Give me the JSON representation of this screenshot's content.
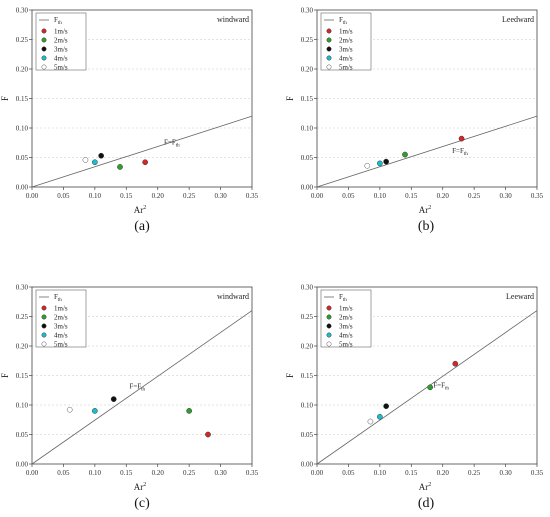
{
  "chart_data": [
    {
      "type": "scatter",
      "panel_label": "(a)",
      "corner_label": "windward",
      "xlabel": "Ar",
      "xlabel_sup": "2",
      "ylabel": "F",
      "xlim": [
        0,
        0.35
      ],
      "ylim": [
        0,
        0.3
      ],
      "xticks": [
        "0.00",
        "0.05",
        "0.10",
        "0.15",
        "0.20",
        "0.25",
        "0.30",
        "0.35"
      ],
      "yticks": [
        "0.00",
        "0.05",
        "0.10",
        "0.15",
        "0.20",
        "0.25",
        "0.30"
      ],
      "grid": true,
      "legend_position": "top-left",
      "line": {
        "name": "F",
        "name_sub": "th",
        "slope": 0.343,
        "annotation": "F=F",
        "annotation_sub": "th",
        "annotation_at": [
          0.21,
          0.072
        ]
      },
      "series": [
        {
          "name": "1m/s",
          "color": "#d62728",
          "hollow": false,
          "x": 0.18,
          "y": 0.042
        },
        {
          "name": "2m/s",
          "color": "#2ca02c",
          "hollow": false,
          "x": 0.14,
          "y": 0.034
        },
        {
          "name": "3m/s",
          "color": "#111111",
          "hollow": false,
          "x": 0.11,
          "y": 0.053
        },
        {
          "name": "4m/s",
          "color": "#17becf",
          "hollow": false,
          "x": 0.1,
          "y": 0.042
        },
        {
          "name": "5m/s",
          "color": "#ffffff",
          "hollow": true,
          "x": 0.085,
          "y": 0.046
        }
      ]
    },
    {
      "type": "scatter",
      "panel_label": "(b)",
      "corner_label": "Leedward",
      "xlabel": "Ar",
      "xlabel_sup": "2",
      "ylabel": "F",
      "xlim": [
        0,
        0.35
      ],
      "ylim": [
        0,
        0.3
      ],
      "xticks": [
        "0.00",
        "0.05",
        "0.10",
        "0.15",
        "0.20",
        "0.25",
        "0.30",
        "0.35"
      ],
      "yticks": [
        "0.00",
        "0.05",
        "0.10",
        "0.15",
        "0.20",
        "0.25",
        "0.30"
      ],
      "grid": true,
      "legend_position": "top-left",
      "line": {
        "name": "F",
        "name_sub": "th",
        "slope": 0.343,
        "annotation": "F=F",
        "annotation_sub": "th",
        "annotation_at": [
          0.215,
          0.058
        ]
      },
      "series": [
        {
          "name": "1m/s",
          "color": "#d62728",
          "hollow": false,
          "x": 0.23,
          "y": 0.082
        },
        {
          "name": "2m/s",
          "color": "#2ca02c",
          "hollow": false,
          "x": 0.14,
          "y": 0.055
        },
        {
          "name": "3m/s",
          "color": "#111111",
          "hollow": false,
          "x": 0.11,
          "y": 0.043
        },
        {
          "name": "4m/s",
          "color": "#17becf",
          "hollow": false,
          "x": 0.1,
          "y": 0.04
        },
        {
          "name": "5m/s",
          "color": "#ffffff",
          "hollow": true,
          "x": 0.08,
          "y": 0.036
        }
      ]
    },
    {
      "type": "scatter",
      "panel_label": "(c)",
      "corner_label": "windward",
      "xlabel": "Ar",
      "xlabel_sup": "2",
      "ylabel": "F",
      "xlim": [
        0,
        0.35
      ],
      "ylim": [
        0,
        0.3
      ],
      "xticks": [
        "0.00",
        "0.05",
        "0.10",
        "0.15",
        "0.20",
        "0.25",
        "0.30",
        "0.35"
      ],
      "yticks": [
        "0.00",
        "0.05",
        "0.10",
        "0.15",
        "0.20",
        "0.25",
        "0.30"
      ],
      "grid": true,
      "legend_position": "top-left",
      "line": {
        "name": "F",
        "name_sub": "th",
        "slope": 0.743,
        "annotation": "F=F",
        "annotation_sub": "th",
        "annotation_at": [
          0.155,
          0.128
        ]
      },
      "series": [
        {
          "name": "1m/s",
          "color": "#d62728",
          "hollow": false,
          "x": 0.28,
          "y": 0.05
        },
        {
          "name": "2m/s",
          "color": "#2ca02c",
          "hollow": false,
          "x": 0.25,
          "y": 0.09
        },
        {
          "name": "3m/s",
          "color": "#111111",
          "hollow": false,
          "x": 0.13,
          "y": 0.11
        },
        {
          "name": "4m/s",
          "color": "#17becf",
          "hollow": false,
          "x": 0.1,
          "y": 0.09
        },
        {
          "name": "5m/s",
          "color": "#ffffff",
          "hollow": true,
          "x": 0.06,
          "y": 0.092
        }
      ]
    },
    {
      "type": "scatter",
      "panel_label": "(d)",
      "corner_label": "Leeward",
      "xlabel": "Ar",
      "xlabel_sup": "2",
      "ylabel": "F",
      "xlim": [
        0,
        0.35
      ],
      "ylim": [
        0,
        0.3
      ],
      "xticks": [
        "0.00",
        "0.05",
        "0.10",
        "0.15",
        "0.20",
        "0.25",
        "0.30",
        "0.35"
      ],
      "yticks": [
        "0.00",
        "0.05",
        "0.10",
        "0.15",
        "0.20",
        "0.25",
        "0.30"
      ],
      "grid": true,
      "legend_position": "top-left",
      "line": {
        "name": "F",
        "name_sub": "th",
        "slope": 0.743,
        "annotation": "F=F",
        "annotation_sub": "th",
        "annotation_at": [
          0.185,
          0.13
        ]
      },
      "series": [
        {
          "name": "1m/s",
          "color": "#d62728",
          "hollow": false,
          "x": 0.22,
          "y": 0.17
        },
        {
          "name": "2m/s",
          "color": "#2ca02c",
          "hollow": false,
          "x": 0.18,
          "y": 0.13
        },
        {
          "name": "3m/s",
          "color": "#111111",
          "hollow": false,
          "x": 0.11,
          "y": 0.098
        },
        {
          "name": "4m/s",
          "color": "#17becf",
          "hollow": false,
          "x": 0.1,
          "y": 0.08
        },
        {
          "name": "5m/s",
          "color": "#ffffff",
          "hollow": true,
          "x": 0.085,
          "y": 0.072
        }
      ]
    }
  ]
}
